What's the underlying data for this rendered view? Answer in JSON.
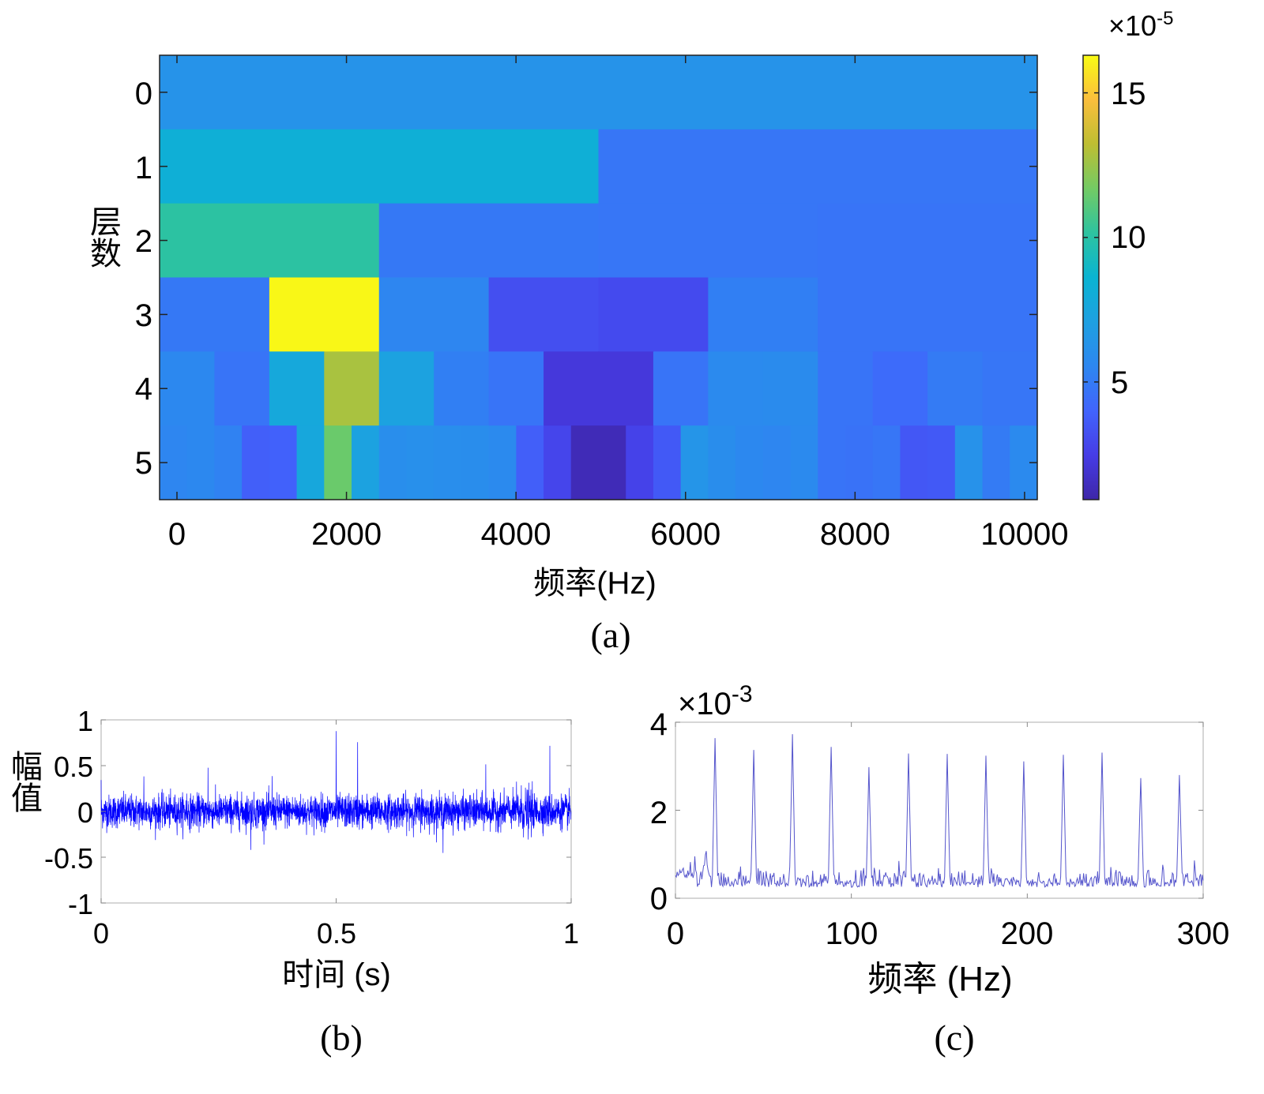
{
  "chart_data": [
    {
      "type": "heatmap",
      "panel_label": "(a)",
      "xlabel": "频率(Hz)",
      "ylabel": "层数",
      "xlim": [
        -205,
        10150
      ],
      "xticks": [
        "0",
        "2000",
        "4000",
        "6000",
        "8000",
        "10000"
      ],
      "yticks": [
        "0",
        "1",
        "2",
        "3",
        "4",
        "5"
      ],
      "colorbar": {
        "exponent_label": "×10",
        "exponent": "-5",
        "ticks": [
          "5",
          "10",
          "15"
        ],
        "clim": [
          0.93,
          16.3
        ]
      },
      "colormap": "parula",
      "levels": [
        [
          6.3
        ],
        [
          8.2,
          4.8
        ],
        [
          10.1,
          4.9,
          4.8,
          4.7
        ],
        [
          4.9,
          16.2,
          5.5,
          3.2,
          3.0,
          5.2,
          4.7,
          4.7
        ],
        [
          5.6,
          4.7,
          7.7,
          12.8,
          7.2,
          5.2,
          4.7,
          2.2,
          2.2,
          4.7,
          5.7,
          5.8,
          4.7,
          4.3,
          5.0,
          4.8
        ],
        [
          5.5,
          5.6,
          5.3,
          3.8,
          3.9,
          7.6,
          11.5,
          7.2,
          6.0,
          6.1,
          6.0,
          5.9,
          5.7,
          3.8,
          2.8,
          1.3,
          1.3,
          2.7,
          3.6,
          6.4,
          5.9,
          5.6,
          5.5,
          5.7,
          4.7,
          4.6,
          4.8,
          3.5,
          3.6,
          6.2,
          5.0,
          5.7
        ]
      ]
    },
    {
      "type": "line",
      "panel_label": "(b)",
      "xlabel": "时间 (s)",
      "ylabel": "幅值",
      "xlim": [
        0,
        1
      ],
      "ylim": [
        -1,
        1
      ],
      "xticks": [
        "0",
        "0.5",
        "1"
      ],
      "yticks": [
        "1",
        "0.5",
        "0",
        "-0.5",
        "-1"
      ],
      "color": "#0000ff"
    },
    {
      "type": "line",
      "panel_label": "(c)",
      "xlabel": "频率 (Hz)",
      "xlim": [
        0,
        300
      ],
      "ylim": [
        0,
        4
      ],
      "exponent_label": "×10",
      "exponent": "-3",
      "xticks": [
        "0",
        "100",
        "200",
        "300"
      ],
      "yticks": [
        "0",
        "2",
        "4"
      ],
      "color": "#5555cc",
      "peaks": {
        "x": [
          22.5,
          44.5,
          66.5,
          88.5,
          110,
          132.5,
          154.5,
          176.5,
          198,
          220.5,
          242.5,
          264.5,
          286.5
        ],
        "y": [
          3.64,
          3.37,
          3.73,
          3.44,
          2.98,
          3.29,
          3.28,
          3.24,
          3.11,
          3.26,
          3.31,
          2.73,
          2.8
        ]
      }
    }
  ]
}
